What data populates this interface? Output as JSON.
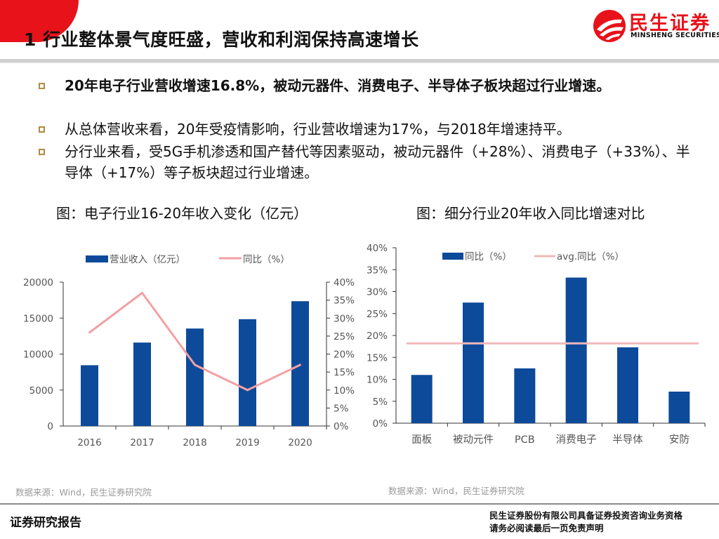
{
  "header": {
    "title": "1 行业整体景气度旺盛，营收和利润保持高速增长",
    "logo_cn": "民生证券",
    "logo_en": "MINSHENG SECURITIES",
    "accent_color": "#e8121a"
  },
  "bullets": [
    "20年电子行业营收增速16.8%，被动元器件、消费电子、半导体子板块超过行业增速。",
    "从总体营收来看，20年受疫情影响，行业营收增速为17%，与2018年增速持平。",
    "分行业来看，受5G手机渗透和国产替代等因素驱动，被动元器件（+28%）、消费电子（+33%）、半导体（+17%）等子板块超过行业增速。"
  ],
  "chart_data": [
    {
      "type": "bar+line",
      "title": "图：电子行业16-20年收入变化（亿元）",
      "categories": [
        "2016",
        "2017",
        "2018",
        "2019",
        "2020"
      ],
      "series": [
        {
          "name": "营业收入（亿元）",
          "type": "bar",
          "axis": "left",
          "color": "#0d4a9a",
          "values": [
            8450,
            11600,
            13550,
            14850,
            17350
          ]
        },
        {
          "name": "同比（%）",
          "type": "line",
          "axis": "right",
          "color": "#f4a0a3",
          "values": [
            26,
            37,
            17,
            10,
            17
          ]
        }
      ],
      "y_left": {
        "min": 0,
        "max": 20000,
        "ticks": [
          "0",
          "5000",
          "10000",
          "15000",
          "20000"
        ]
      },
      "y_right": {
        "min": 0,
        "max": 40,
        "ticks": [
          "0%",
          "5%",
          "10%",
          "15%",
          "20%",
          "25%",
          "30%",
          "35%",
          "40%"
        ]
      },
      "source": "数据来源：Wind，民生证券研究院"
    },
    {
      "type": "bar+line",
      "title": "图：细分行业20年收入同比增速对比",
      "categories": [
        "面板",
        "被动元件",
        "PCB",
        "消费电子",
        "半导体",
        "安防"
      ],
      "series": [
        {
          "name": "同比（%）",
          "type": "bar",
          "color": "#0d4a9a",
          "values": [
            11,
            27.5,
            12.5,
            33.2,
            17.3,
            7.2
          ]
        },
        {
          "name": "avg.同比（%）",
          "type": "hline",
          "color": "#f2b8ba",
          "value": 18.2
        }
      ],
      "y": {
        "min": 0,
        "max": 40,
        "ticks": [
          "0%",
          "5%",
          "10%",
          "15%",
          "20%",
          "25%",
          "30%",
          "35%",
          "40%"
        ]
      },
      "source": "数据来源：Wind，民生证券研究院"
    }
  ],
  "footer": {
    "left": "证券研究报告",
    "right_line1": "民生证券股份有限公司具备证券投资咨询业务资格",
    "right_line2": "请务必阅读最后一页免责声明"
  }
}
